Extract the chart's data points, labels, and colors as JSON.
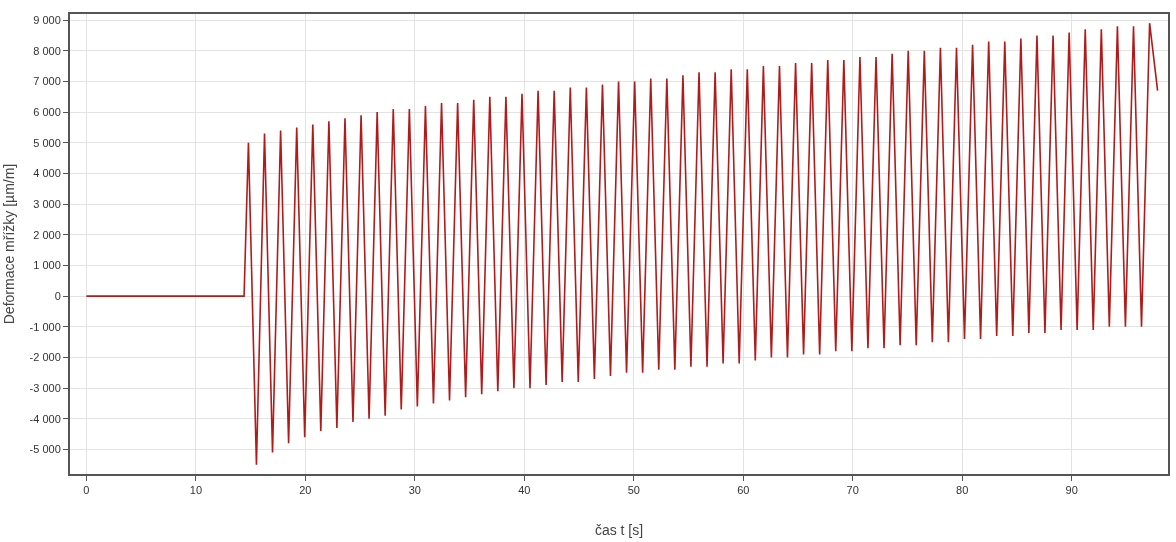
{
  "chart_data": {
    "type": "line",
    "xlabel": "čas t [s]",
    "ylabel": "Deformace mřížky [µm/m]",
    "xlim": [
      -1.5,
      98.8
    ],
    "ylim": [
      -5800,
      9200
    ],
    "xticks": [
      0,
      10,
      20,
      30,
      40,
      50,
      60,
      70,
      80,
      90
    ],
    "yticks": [
      {
        "value": -5000,
        "label": "-5 000"
      },
      {
        "value": -4000,
        "label": "-4 000"
      },
      {
        "value": -3000,
        "label": "-3 000"
      },
      {
        "value": -2000,
        "label": "-2 000"
      },
      {
        "value": -1000,
        "label": "-1 000"
      },
      0,
      {
        "value": 1000,
        "label": "1 000"
      },
      {
        "value": 2000,
        "label": "2 000"
      },
      {
        "value": 3000,
        "label": "3 000"
      },
      {
        "value": 4000,
        "label": "4 000"
      },
      {
        "value": 5000,
        "label": "5 000"
      },
      {
        "value": 6000,
        "label": "6 000"
      },
      {
        "value": 7000,
        "label": "7 000"
      },
      {
        "value": 8000,
        "label": "8 000"
      },
      {
        "value": 9000,
        "label": "9 000"
      }
    ],
    "grid": true,
    "marker": "none",
    "line_style": "solid",
    "series": [
      {
        "color": "#b01c1c",
        "x": [
          0,
          14.4,
          14.8,
          15.53,
          16.27,
          17.0,
          17.74,
          18.47,
          19.21,
          19.94,
          20.68,
          21.41,
          22.15,
          22.88,
          23.62,
          24.35,
          25.09,
          25.82,
          26.56,
          27.29,
          28.03,
          28.76,
          29.5,
          30.23,
          30.97,
          31.7,
          32.44,
          33.17,
          33.91,
          34.64,
          35.38,
          36.11,
          36.85,
          37.58,
          38.32,
          39.05,
          39.79,
          40.52,
          41.26,
          41.99,
          42.73,
          43.46,
          44.2,
          44.93,
          45.67,
          46.4,
          47.14,
          47.87,
          48.61,
          49.34,
          50.08,
          50.81,
          51.55,
          52.28,
          53.02,
          53.75,
          54.49,
          55.22,
          55.96,
          56.69,
          57.43,
          58.16,
          58.9,
          59.63,
          60.37,
          61.1,
          61.84,
          62.57,
          63.31,
          64.04,
          64.78,
          65.51,
          66.25,
          66.98,
          67.72,
          68.45,
          69.19,
          69.92,
          70.66,
          71.39,
          72.13,
          72.86,
          73.6,
          74.33,
          75.07,
          75.8,
          76.54,
          77.27,
          78.01,
          78.74,
          79.48,
          80.21,
          80.95,
          81.68,
          82.42,
          83.15,
          83.89,
          84.62,
          85.36,
          86.09,
          86.83,
          87.56,
          88.3,
          89.03,
          89.77,
          90.5,
          91.24,
          91.97,
          92.71,
          93.44,
          94.18,
          94.91,
          95.65,
          96.38,
          97.12,
          97.85
        ],
        "values": [
          0,
          0,
          5000,
          -5500,
          5300,
          -5100,
          5400,
          -4800,
          5500,
          -4600,
          5600,
          -4400,
          5700,
          -4300,
          5800,
          -4100,
          5900,
          -4000,
          6000,
          -3900,
          6100,
          -3700,
          6100,
          -3600,
          6200,
          -3500,
          6300,
          -3400,
          6300,
          -3300,
          6400,
          -3200,
          6500,
          -3100,
          6500,
          -3000,
          6600,
          -3000,
          6700,
          -2900,
          6700,
          -2800,
          6800,
          -2800,
          6800,
          -2700,
          6900,
          -2600,
          7000,
          -2500,
          7000,
          -2500,
          7100,
          -2400,
          7100,
          -2400,
          7200,
          -2300,
          7300,
          -2300,
          7300,
          -2200,
          7400,
          -2200,
          7400,
          -2100,
          7500,
          -2000,
          7500,
          -2000,
          7600,
          -1900,
          7600,
          -1900,
          7700,
          -1800,
          7700,
          -1800,
          7800,
          -1700,
          7800,
          -1700,
          7900,
          -1600,
          8000,
          -1600,
          8000,
          -1500,
          8100,
          -1500,
          8100,
          -1400,
          8200,
          -1400,
          8300,
          -1300,
          8300,
          -1300,
          8400,
          -1200,
          8500,
          -1200,
          8500,
          -1100,
          8600,
          -1100,
          8700,
          -1100,
          8700,
          -1000,
          8800,
          -1000,
          8800,
          -1000,
          8900,
          6700
        ]
      }
    ]
  }
}
